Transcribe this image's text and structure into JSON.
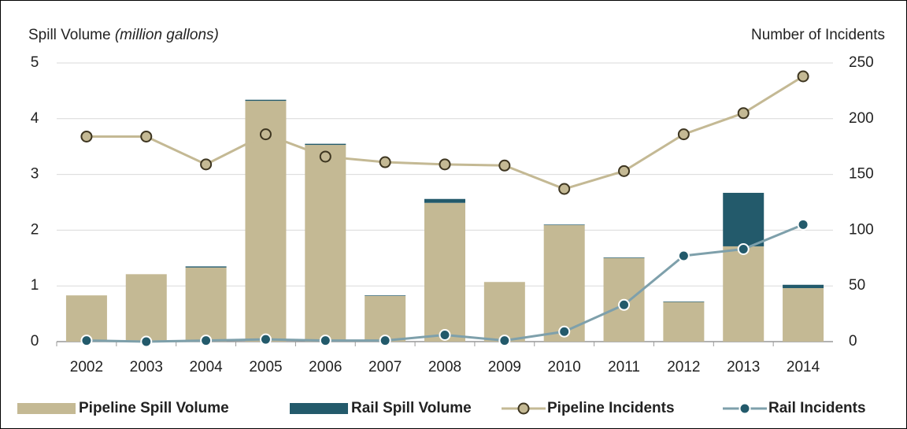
{
  "chart_data": {
    "type": "bar",
    "y_label": "Spill Volume",
    "y_label_unit": "(million gallons)",
    "y2_label": "Number of Incidents",
    "categories": [
      "2002",
      "2003",
      "2004",
      "2005",
      "2006",
      "2007",
      "2008",
      "2009",
      "2010",
      "2011",
      "2012",
      "2013",
      "2014"
    ],
    "series": [
      {
        "name": "Pipeline Spill Volume",
        "type": "bar",
        "color": "#c4b994",
        "values": [
          0.83,
          1.21,
          1.33,
          4.32,
          3.53,
          0.82,
          2.49,
          1.07,
          2.09,
          1.5,
          0.71,
          1.71,
          0.96
        ]
      },
      {
        "name": "Rail Spill Volume",
        "type": "bar",
        "color": "#235a6b",
        "values": [
          0,
          0,
          0.02,
          0.02,
          0.02,
          0.01,
          0.07,
          0,
          0.01,
          0.01,
          0.01,
          0.96,
          0.06
        ]
      },
      {
        "name": "Pipeline Incidents",
        "type": "line",
        "axis": "y2",
        "color": "#c4b994",
        "marker_color": "#c4b994",
        "values": [
          184,
          184,
          159,
          186,
          166,
          161,
          159,
          158,
          137,
          153,
          186,
          205,
          238
        ]
      },
      {
        "name": "Rail Incidents",
        "type": "line",
        "axis": "y2",
        "color": "#7ea0ab",
        "marker_color": "#235a6b",
        "values": [
          1,
          0,
          1,
          2,
          1,
          1,
          6,
          1,
          9,
          33,
          77,
          83,
          105
        ]
      }
    ],
    "ylim": [
      0,
      5
    ],
    "yticks": [
      0,
      1,
      2,
      3,
      4,
      5
    ],
    "y2lim": [
      0,
      250
    ],
    "y2ticks": [
      0,
      50,
      100,
      150,
      200,
      250
    ],
    "grid": true,
    "legend": "bottom"
  }
}
